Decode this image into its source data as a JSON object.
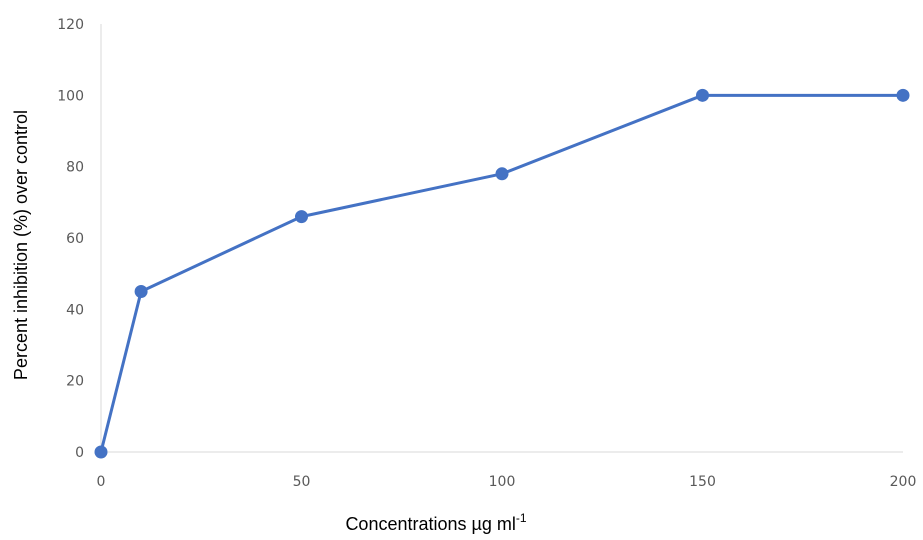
{
  "chart_data": {
    "type": "line",
    "title": "",
    "xlabel": "Concentrations µg ml",
    "xlabel_superscript": "-1",
    "ylabel": "Percent inhibition (%) over control",
    "xlim": [
      0,
      200
    ],
    "ylim": [
      0,
      120
    ],
    "x_ticks": [
      0,
      50,
      100,
      150,
      200
    ],
    "y_ticks": [
      0,
      20,
      40,
      60,
      80,
      100,
      120
    ],
    "grid": false,
    "legend": "none",
    "series": [
      {
        "color": "#4472c4",
        "x": [
          0,
          10,
          50,
          100,
          150,
          200
        ],
        "y": [
          0,
          45,
          66,
          78,
          100,
          100
        ]
      }
    ]
  }
}
